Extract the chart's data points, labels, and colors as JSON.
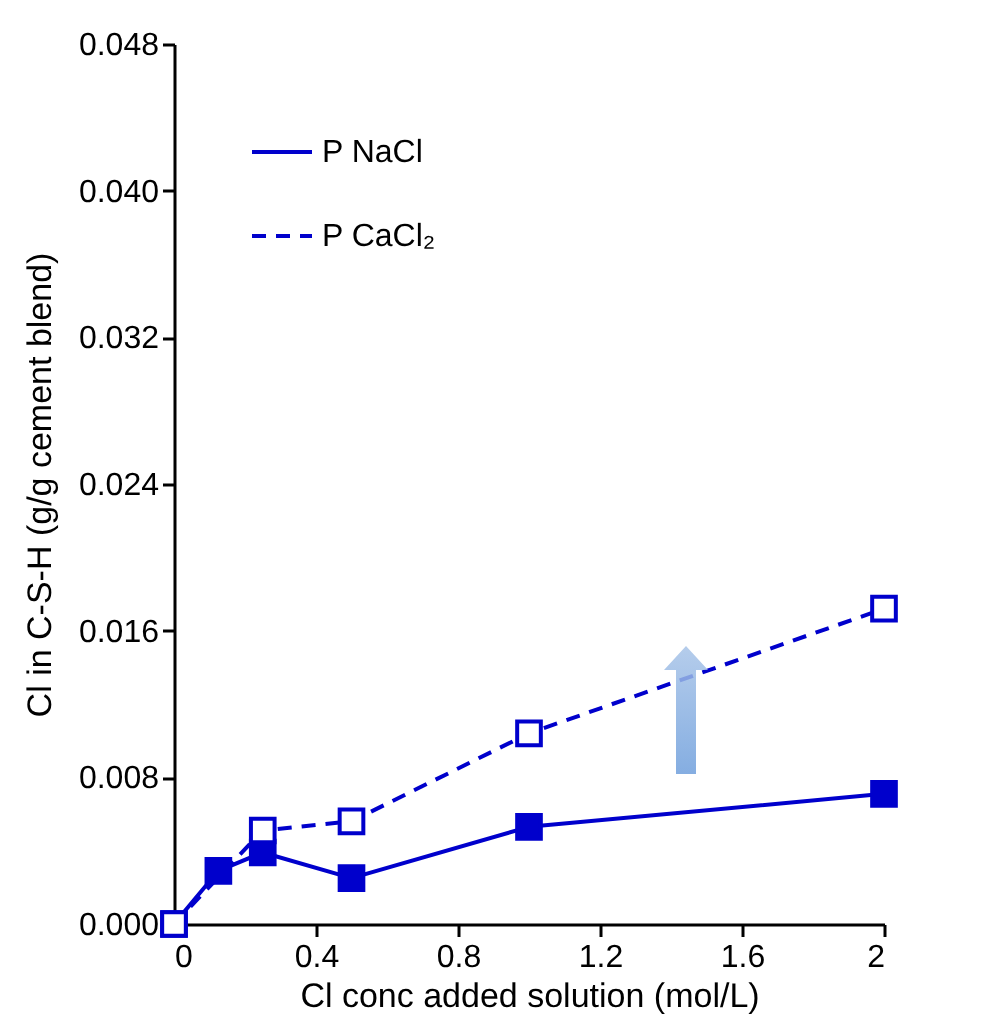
{
  "chart_data": {
    "type": "line",
    "xlabel": "Cl conc added solution (mol/L)",
    "ylabel": "Cl in C-S-H (g/g cement blend)",
    "xlim": [
      0,
      2
    ],
    "xticks": [
      0,
      0.4,
      0.8,
      1.2,
      1.6,
      2
    ],
    "ylim": [
      0,
      0.048
    ],
    "yticks": [
      {
        "value": 0,
        "label": "0.000"
      },
      {
        "value": 0.008,
        "label": "0.008"
      },
      {
        "value": 0.016,
        "label": "0.016"
      },
      {
        "value": 0.024,
        "label": "0.024"
      },
      {
        "value": 0.032,
        "label": "0.032"
      },
      {
        "value": 0.04,
        "label": "0.040"
      },
      {
        "value": 0.048,
        "label": "0.048"
      }
    ],
    "marker": "square",
    "legend": "top left",
    "grid": false,
    "series": [
      {
        "name": "P NaCl",
        "color": "#0000cc",
        "line_style": "solid",
        "x": [
          0,
          0.125,
          0.25,
          0.5,
          1,
          2
        ],
        "values": [
          0,
          0.0029,
          0.0039,
          0.0025,
          0.0053,
          0.0071
        ]
      },
      {
        "name": "P CaCl₂",
        "color": "#0000cc",
        "line_style": "dashed",
        "x": [
          0,
          0.25,
          0.5,
          1,
          2
        ],
        "values": [
          0,
          0.0051,
          0.0056,
          0.0104,
          0.0172
        ]
      }
    ]
  }
}
